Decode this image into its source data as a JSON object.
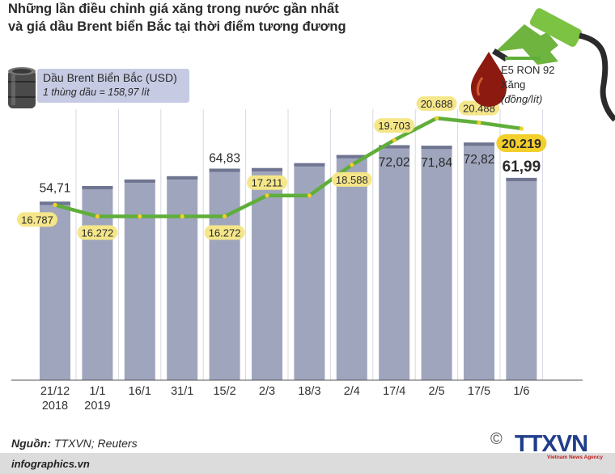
{
  "title": {
    "line1": "Những lần điều chỉnh giá xăng trong nước gần nhất",
    "line2": "và giá dầu Brent biển Bắc tại thời điểm tương đương"
  },
  "legend": {
    "brent_label": "Dầu Brent Biển Bắc (USD)",
    "brent_note": "1 thùng dầu = 158,97 lít",
    "fuel_series": "E5 RON 92",
    "fuel_type": "Xăng",
    "fuel_unit": "(đồng/lít)"
  },
  "source": {
    "label": "Nguồn:",
    "value": "TTXVN; Reuters"
  },
  "footer": {
    "site": "infographics.vn",
    "copyright_symbol": "©",
    "logo": "TTXVN",
    "logo_sub": "Vietnam News Agency"
  },
  "colors": {
    "bar": "#9fa5bd",
    "bar_top": "#6f7590",
    "line": "#5fae3a",
    "label_fill": "#f5e68a",
    "gridline": "#d6d8e2",
    "highlight": "#f3cf2b"
  },
  "chart_data": {
    "type": "bar+line",
    "title": "Những lần điều chỉnh giá xăng trong nước gần nhất và giá dầu Brent biển Bắc tại thời điểm tương đương",
    "categories": [
      "21/12 2018",
      "1/1 2019",
      "16/1",
      "31/1",
      "15/2",
      "2/3",
      "18/3",
      "2/4",
      "17/4",
      "2/5",
      "17/5",
      "1/6"
    ],
    "category_lines": [
      [
        "21/12",
        "2018"
      ],
      [
        "1/1",
        "2019"
      ],
      [
        "16/1"
      ],
      [
        "31/1"
      ],
      [
        "15/2"
      ],
      [
        "2/3"
      ],
      [
        "18/3"
      ],
      [
        "2/4"
      ],
      [
        "17/4"
      ],
      [
        "2/5"
      ],
      [
        "17/5"
      ],
      [
        "1/6"
      ]
    ],
    "series": [
      {
        "name": "Dầu Brent Biển Bắc (USD)",
        "type": "bar",
        "values": [
          54.71,
          59.5,
          61.5,
          62.5,
          64.83,
          65.0,
          66.5,
          69.0,
          72.02,
          71.84,
          72.82,
          61.99
        ],
        "labels": [
          "54,71",
          "",
          "",
          "",
          "64,83",
          "",
          "",
          "",
          "72,02",
          "71,84",
          "72,82",
          "61,99"
        ]
      },
      {
        "name": "Xăng E5 RON 92 (đồng/lít)",
        "type": "line",
        "values": [
          16787,
          16272,
          16272,
          16272,
          16272,
          17211,
          17211,
          18588,
          19703,
          20688,
          20488,
          20219
        ],
        "labels": [
          "16.787",
          "16.272",
          "",
          "",
          "16.272",
          "17.211",
          "",
          "18.588",
          "19.703",
          "20.688",
          "20.488",
          "20.219"
        ]
      }
    ],
    "xlabel": "",
    "ylabel": ""
  }
}
